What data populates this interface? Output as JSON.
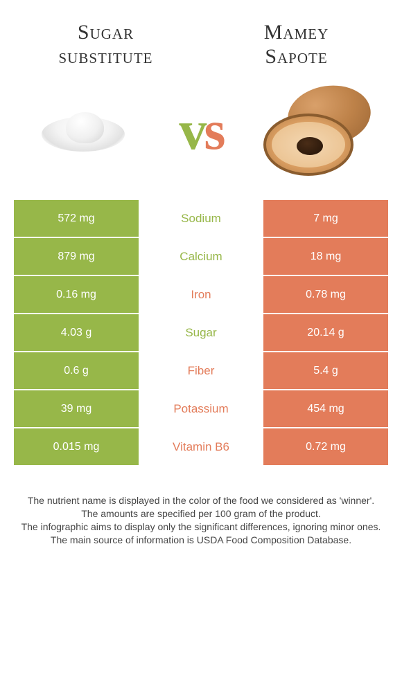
{
  "left_title_line1": "Sugar",
  "left_title_line2": "substitute",
  "right_title_line1": "Mamey",
  "right_title_line2": "Sapote",
  "vs_v": "v",
  "vs_s": "s",
  "colors": {
    "left": "#97b749",
    "right": "#e37c5a",
    "left_text": "#97b749",
    "right_text": "#e37c5a"
  },
  "rows": [
    {
      "left": "572 mg",
      "label": "Sodium",
      "right": "7 mg",
      "winner": "left"
    },
    {
      "left": "879 mg",
      "label": "Calcium",
      "right": "18 mg",
      "winner": "left"
    },
    {
      "left": "0.16 mg",
      "label": "Iron",
      "right": "0.78 mg",
      "winner": "right"
    },
    {
      "left": "4.03 g",
      "label": "Sugar",
      "right": "20.14 g",
      "winner": "left"
    },
    {
      "left": "0.6 g",
      "label": "Fiber",
      "right": "5.4 g",
      "winner": "right"
    },
    {
      "left": "39 mg",
      "label": "Potassium",
      "right": "454 mg",
      "winner": "right"
    },
    {
      "left": "0.015 mg",
      "label": "Vitamin B6",
      "right": "0.72 mg",
      "winner": "right"
    }
  ],
  "footer": [
    "The nutrient name is displayed in the color of the food we considered as 'winner'.",
    "The amounts are specified per 100 gram of the product.",
    "The infographic aims to display only the significant differences, ignoring minor ones.",
    "The main source of information is USDA Food Composition Database."
  ]
}
